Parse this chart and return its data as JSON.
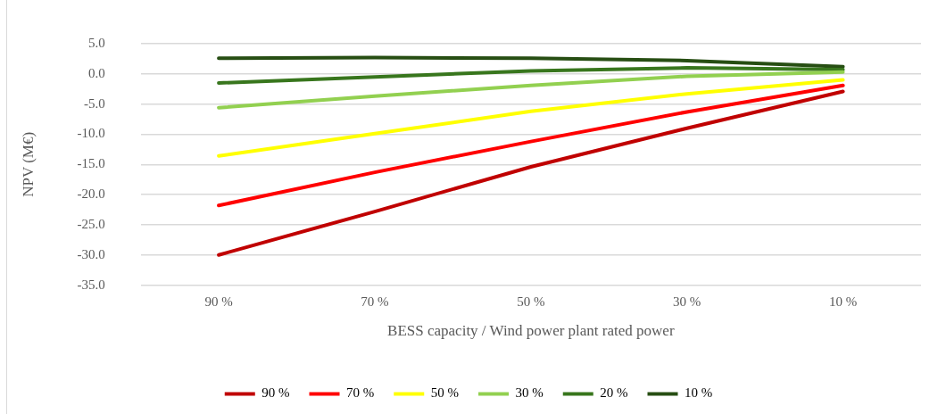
{
  "chart_data": {
    "type": "line",
    "xlabel": "BESS capacity / Wind power plant rated power",
    "ylabel": "NPV (M€)",
    "categories": [
      "90 %",
      "70 %",
      "50 %",
      "30 %",
      "10 %"
    ],
    "series": [
      {
        "name": "90 %",
        "color": "#c00000",
        "values": [
          -30.0,
          -22.8,
          -15.4,
          -9.0,
          -2.9
        ]
      },
      {
        "name": "70 %",
        "color": "#ff0000",
        "values": [
          -21.8,
          -16.3,
          -11.2,
          -6.3,
          -1.9
        ]
      },
      {
        "name": "50 %",
        "color": "#ffff00",
        "values": [
          -13.6,
          -9.9,
          -6.2,
          -3.3,
          -1.0
        ]
      },
      {
        "name": "30 %",
        "color": "#92d050",
        "values": [
          -5.6,
          -3.7,
          -1.9,
          -0.4,
          0.3
        ]
      },
      {
        "name": "20 %",
        "color": "#38761d",
        "values": [
          -1.5,
          -0.5,
          0.5,
          1.0,
          0.7
        ]
      },
      {
        "name": "10 %",
        "color": "#274e13",
        "values": [
          2.6,
          2.7,
          2.6,
          2.2,
          1.2
        ]
      }
    ],
    "ylim": [
      -35,
      5
    ],
    "yticks": [
      {
        "value": -35,
        "label": "-35.0"
      },
      {
        "value": -30,
        "label": "-30.0"
      },
      {
        "value": -25,
        "label": "-25.0"
      },
      {
        "value": -20,
        "label": "-20.0"
      },
      {
        "value": -15,
        "label": "-15.0"
      },
      {
        "value": -10,
        "label": "-10.0"
      },
      {
        "value": -5,
        "label": "-5.0"
      },
      {
        "value": 0,
        "label": "0.0"
      },
      {
        "value": 5,
        "label": "5.0"
      }
    ],
    "grid": "y",
    "legend": "bottom",
    "marker": "none",
    "line_style": "solid"
  }
}
